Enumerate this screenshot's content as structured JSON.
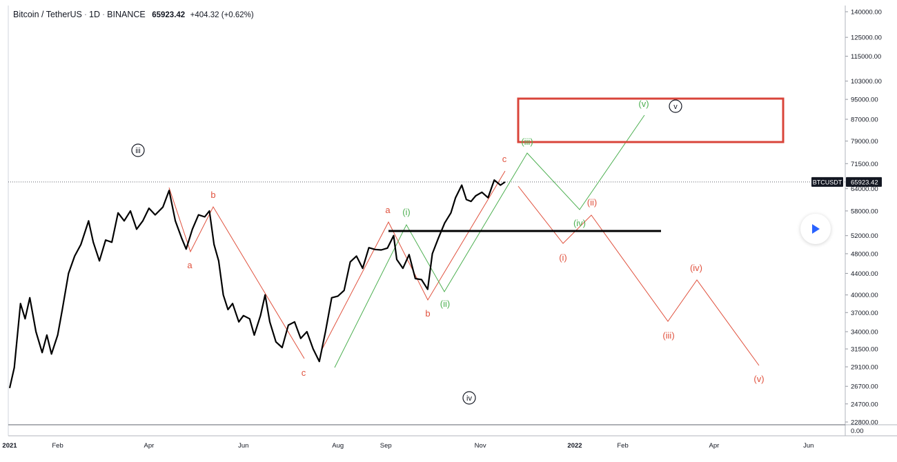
{
  "header": {
    "symbol": "Bitcoin / TetherUS",
    "interval": "1D",
    "exchange": "BINANCE",
    "price": "65923.42",
    "change": "+404.32 (+0.62%)"
  },
  "price_tag": {
    "label": "BTCUSDT",
    "value": "65923.42"
  },
  "colors": {
    "price_line": "#000000",
    "red_wave": "#e0513d",
    "green_wave": "#4caf50",
    "target_box": "#d9443a",
    "support": "#000000"
  },
  "chart_data": {
    "type": "line",
    "scale": "log",
    "y_ticks": [
      "140000.00",
      "125000.00",
      "115000.00",
      "103000.00",
      "95000.00",
      "87000.00",
      "79000.00",
      "71500.00",
      "64000.00",
      "58000.00",
      "52000.00",
      "48000.00",
      "44000.00",
      "40000.00",
      "37000.00",
      "34000.00",
      "31500.00",
      "29100.00",
      "26700.00",
      "24700.00",
      "22800.00"
    ],
    "volume_tick": "0.00",
    "x_ticks": [
      "2021",
      "Feb",
      "Apr",
      "Jun",
      "Aug",
      "Sep",
      "Nov",
      "2022",
      "Feb",
      "Apr",
      "Jun"
    ],
    "x_tick_dates": [
      "2021-01-01",
      "2021-02-01",
      "2021-04-01",
      "2021-06-01",
      "2021-08-01",
      "2021-09-01",
      "2021-11-01",
      "2022-01-01",
      "2022-02-01",
      "2022-04-01",
      "2022-06-01"
    ],
    "series": [
      {
        "points": [
          [
            "2021-01-01",
            26500
          ],
          [
            "2021-01-04",
            29000
          ],
          [
            "2021-01-08",
            38500
          ],
          [
            "2021-01-11",
            36000
          ],
          [
            "2021-01-14",
            39500
          ],
          [
            "2021-01-18",
            34000
          ],
          [
            "2021-01-22",
            31000
          ],
          [
            "2021-01-25",
            33500
          ],
          [
            "2021-01-28",
            30800
          ],
          [
            "2021-02-01",
            33500
          ],
          [
            "2021-02-04",
            37500
          ],
          [
            "2021-02-08",
            44000
          ],
          [
            "2021-02-12",
            47500
          ],
          [
            "2021-02-16",
            50000
          ],
          [
            "2021-02-21",
            55500
          ],
          [
            "2021-02-24",
            50500
          ],
          [
            "2021-02-28",
            46500
          ],
          [
            "2021-03-04",
            51000
          ],
          [
            "2021-03-08",
            50500
          ],
          [
            "2021-03-12",
            57500
          ],
          [
            "2021-03-16",
            55500
          ],
          [
            "2021-03-20",
            58000
          ],
          [
            "2021-03-24",
            53500
          ],
          [
            "2021-03-28",
            55500
          ],
          [
            "2021-04-01",
            58700
          ],
          [
            "2021-04-05",
            57000
          ],
          [
            "2021-04-10",
            59000
          ],
          [
            "2021-04-14",
            63500
          ],
          [
            "2021-04-18",
            55500
          ],
          [
            "2021-04-22",
            51500
          ],
          [
            "2021-04-25",
            49000
          ],
          [
            "2021-04-29",
            53500
          ],
          [
            "2021-05-03",
            57000
          ],
          [
            "2021-05-07",
            56500
          ],
          [
            "2021-05-10",
            58000
          ],
          [
            "2021-05-13",
            50000
          ],
          [
            "2021-05-16",
            46500
          ],
          [
            "2021-05-19",
            40000
          ],
          [
            "2021-05-22",
            37500
          ],
          [
            "2021-05-25",
            38500
          ],
          [
            "2021-05-29",
            35500
          ],
          [
            "2021-06-01",
            36500
          ],
          [
            "2021-06-05",
            36000
          ],
          [
            "2021-06-08",
            33500
          ],
          [
            "2021-06-12",
            36500
          ],
          [
            "2021-06-15",
            40000
          ],
          [
            "2021-06-18",
            35500
          ],
          [
            "2021-06-22",
            32500
          ],
          [
            "2021-06-26",
            31700
          ],
          [
            "2021-06-30",
            35000
          ],
          [
            "2021-07-04",
            35500
          ],
          [
            "2021-07-08",
            33000
          ],
          [
            "2021-07-12",
            34000
          ],
          [
            "2021-07-16",
            31500
          ],
          [
            "2021-07-20",
            29800
          ],
          [
            "2021-07-24",
            34000
          ],
          [
            "2021-07-28",
            39500
          ],
          [
            "2021-08-01",
            39800
          ],
          [
            "2021-08-05",
            40800
          ],
          [
            "2021-08-09",
            46300
          ],
          [
            "2021-08-13",
            47500
          ],
          [
            "2021-08-17",
            45000
          ],
          [
            "2021-08-21",
            49300
          ],
          [
            "2021-08-25",
            48900
          ],
          [
            "2021-08-29",
            48800
          ],
          [
            "2021-09-02",
            49200
          ],
          [
            "2021-09-06",
            52000
          ],
          [
            "2021-09-08",
            46800
          ],
          [
            "2021-09-12",
            45000
          ],
          [
            "2021-09-16",
            47800
          ],
          [
            "2021-09-20",
            43000
          ],
          [
            "2021-09-24",
            42800
          ],
          [
            "2021-09-28",
            41000
          ],
          [
            "2021-10-01",
            48000
          ],
          [
            "2021-10-05",
            51500
          ],
          [
            "2021-10-09",
            55000
          ],
          [
            "2021-10-13",
            57500
          ],
          [
            "2021-10-16",
            61500
          ],
          [
            "2021-10-20",
            65000
          ],
          [
            "2021-10-23",
            61000
          ],
          [
            "2021-10-26",
            60500
          ],
          [
            "2021-10-29",
            62000
          ],
          [
            "2021-11-02",
            63000
          ],
          [
            "2021-11-06",
            61500
          ],
          [
            "2021-11-10",
            66500
          ],
          [
            "2021-11-14",
            65000
          ],
          [
            "2021-11-17",
            65923
          ]
        ]
      }
    ],
    "wave_labels": {
      "black_circled": [
        "iii",
        "iv",
        "v"
      ],
      "red": [
        "a",
        "b",
        "c",
        "a",
        "b",
        "c",
        "(i)",
        "(ii)",
        "(iii)",
        "(iv)",
        "(v)"
      ],
      "green": [
        "(i)",
        "(ii)",
        "(iii)",
        "(iv)",
        "(v)"
      ]
    }
  }
}
